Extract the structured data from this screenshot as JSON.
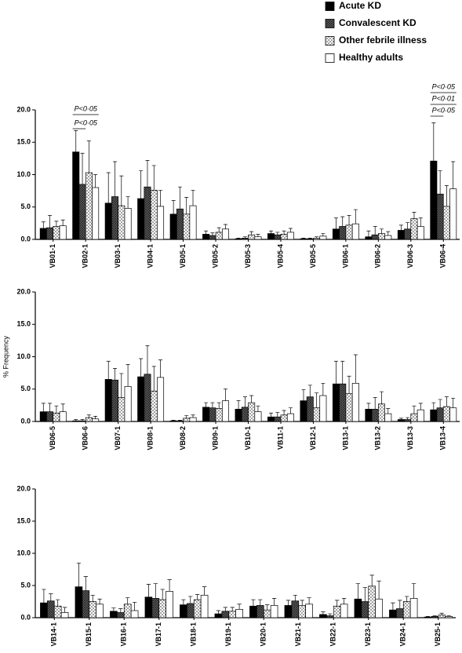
{
  "chart_data": [
    {
      "type": "bar",
      "y_label": null,
      "categories": [
        "VB01-1",
        "VB02-1",
        "VB03-1",
        "VB04-1",
        "VB05-1",
        "VB05-2",
        "VB05-3",
        "VB05-4",
        "VB05-5",
        "VB06-1",
        "VB06-2",
        "VB06-3",
        "VB06-4"
      ],
      "series": [
        {
          "name": "Acute KD",
          "color": "#000000",
          "pattern": "solid",
          "values": [
            1.7,
            13.5,
            5.6,
            6.3,
            3.9,
            0.8,
            0.1,
            0.9,
            0.1,
            1.6,
            0.4,
            1.4,
            12.1
          ],
          "errors": [
            1.0,
            3.3,
            4.7,
            4.3,
            2.1,
            0.5,
            0.1,
            0.4,
            0.1,
            1.7,
            0.9,
            0.8,
            5.9
          ]
        },
        {
          "name": "Convalescent KD",
          "color": "#555555",
          "pattern": "crosshatch",
          "values": [
            1.8,
            8.5,
            6.6,
            8.1,
            4.7,
            0.6,
            0.2,
            0.7,
            0.1,
            2.0,
            0.7,
            1.6,
            7.0
          ],
          "errors": [
            1.9,
            4.8,
            5.4,
            4.1,
            3.4,
            0.4,
            0.2,
            0.4,
            0.1,
            1.5,
            1.3,
            1.0,
            3.6
          ]
        },
        {
          "name": "Other febrile illness",
          "color": "#888888",
          "pattern": "dots",
          "values": [
            2.0,
            10.3,
            5.2,
            7.6,
            3.9,
            1.1,
            0.7,
            0.8,
            0.2,
            2.2,
            0.9,
            3.2,
            5.1
          ],
          "errors": [
            0.8,
            4.9,
            4.6,
            3.8,
            2.6,
            0.7,
            0.5,
            0.5,
            0.2,
            1.5,
            0.7,
            1.0,
            3.2
          ]
        },
        {
          "name": "Healthy adults",
          "color": "#ffffff",
          "pattern": "none",
          "values": [
            2.1,
            8.0,
            4.8,
            5.1,
            5.2,
            1.6,
            0.4,
            1.1,
            0.5,
            2.4,
            0.6,
            2.0,
            7.8
          ],
          "errors": [
            0.9,
            2.0,
            1.8,
            2.5,
            2.4,
            0.7,
            0.4,
            0.6,
            0.4,
            2.2,
            0.6,
            1.3,
            4.2
          ]
        }
      ],
      "annotations": [
        "P<0·05",
        "P<0·05",
        "P<0·05",
        "P<0·01",
        "P<0·05"
      ],
      "ylim": [
        0,
        20
      ],
      "yticks": [
        {
          "value": 0,
          "label": "0.0"
        },
        {
          "value": 5,
          "label": "5.0"
        },
        {
          "value": 10,
          "label": "10.0"
        },
        {
          "value": 15,
          "label": "15.0"
        },
        {
          "value": 20,
          "label": "20.0"
        }
      ]
    },
    {
      "type": "bar",
      "y_label": "% Frequency",
      "categories": [
        "VB06-5",
        "VB06-6",
        "VB07-1",
        "VB08-1",
        "VB08-2",
        "VB09-1",
        "VB10-1",
        "VB11-1",
        "VB12-1",
        "VB13-1",
        "VB13-2",
        "VB13-3",
        "VB13-4"
      ],
      "series": [
        {
          "values": [
            1.5,
            0.1,
            6.5,
            6.9,
            0.1,
            2.2,
            1.9,
            0.7,
            3.2,
            5.8,
            1.9,
            0.3,
            1.8
          ],
          "errors": [
            1.3,
            0.2,
            2.8,
            2.8,
            0.1,
            0.7,
            1.3,
            0.6,
            1.7,
            3.5,
            0.9,
            0.2,
            1.1
          ]
        },
        {
          "values": [
            1.5,
            0.1,
            6.4,
            7.3,
            0.1,
            2.1,
            2.2,
            0.7,
            3.8,
            5.8,
            1.9,
            0.3,
            2.1
          ],
          "errors": [
            1.3,
            0.2,
            1.8,
            4.4,
            0.1,
            0.8,
            1.6,
            0.7,
            1.8,
            3.5,
            1.8,
            0.3,
            1.3
          ]
        },
        {
          "values": [
            1.3,
            0.6,
            3.7,
            4.7,
            0.5,
            2.0,
            2.9,
            1.0,
            2.1,
            4.3,
            2.7,
            1.2,
            2.3
          ],
          "errors": [
            1.1,
            0.4,
            3.7,
            3.8,
            0.4,
            0.9,
            1.1,
            0.7,
            2.3,
            2.7,
            1.9,
            1.2,
            1.5
          ]
        },
        {
          "values": [
            1.5,
            0.4,
            5.4,
            6.8,
            0.6,
            3.2,
            1.5,
            1.2,
            4.0,
            5.9,
            1.2,
            1.8,
            2.1
          ],
          "errors": [
            1.2,
            0.4,
            3.4,
            2.7,
            0.4,
            1.8,
            0.9,
            0.9,
            1.9,
            4.4,
            0.8,
            1.0,
            1.5
          ]
        }
      ],
      "ylim": [
        0,
        20
      ],
      "yticks": [
        {
          "value": 0,
          "label": "0.0"
        },
        {
          "value": 5,
          "label": "5.0"
        },
        {
          "value": 10,
          "label": "10.0"
        },
        {
          "value": 15,
          "label": "15.0"
        },
        {
          "value": 20,
          "label": "20.0"
        }
      ]
    },
    {
      "type": "bar",
      "y_label": null,
      "categories": [
        "VB14-1",
        "VB15-1",
        "VB16-1",
        "VB17-1",
        "VB18-1",
        "VB19-1",
        "VB20-1",
        "VB21-1",
        "VB22-1",
        "VB23-1",
        "VB24-1",
        "VB25-1"
      ],
      "series": [
        {
          "values": [
            2.3,
            4.8,
            1.0,
            3.2,
            2.0,
            0.6,
            1.8,
            1.9,
            0.5,
            2.9,
            1.2,
            0.1
          ],
          "errors": [
            2.1,
            3.7,
            0.5,
            2.0,
            0.8,
            0.5,
            1.0,
            0.8,
            0.4,
            2.4,
            1.1,
            0.1
          ]
        },
        {
          "values": [
            2.6,
            4.2,
            0.8,
            3.0,
            2.2,
            1.0,
            1.9,
            2.6,
            0.3,
            2.5,
            1.4,
            0.2
          ],
          "errors": [
            1.1,
            2.2,
            0.6,
            2.3,
            1.1,
            0.6,
            0.9,
            0.9,
            0.3,
            2.2,
            1.3,
            0.1
          ]
        },
        {
          "values": [
            1.8,
            2.5,
            2.1,
            2.8,
            2.8,
            1.0,
            1.2,
            1.9,
            1.8,
            4.9,
            2.5,
            0.4
          ],
          "errors": [
            1.0,
            1.0,
            1.0,
            1.6,
            0.8,
            0.6,
            0.8,
            0.8,
            0.9,
            1.7,
            0.8,
            0.3
          ]
        },
        {
          "values": [
            0.8,
            2.1,
            1.1,
            4.1,
            3.5,
            1.3,
            1.9,
            2.1,
            2.1,
            2.9,
            3.0,
            0.2
          ],
          "errors": [
            0.8,
            0.8,
            1.3,
            1.8,
            1.3,
            0.8,
            1.1,
            1.0,
            0.9,
            2.8,
            2.3,
            0.1
          ]
        }
      ],
      "ylim": [
        0,
        20
      ],
      "yticks": [
        {
          "value": 0,
          "label": "0.0"
        },
        {
          "value": 5,
          "label": "5.0"
        },
        {
          "value": 10,
          "label": "10.0"
        },
        {
          "value": 15,
          "label": "15.0"
        },
        {
          "value": 20,
          "label": "20.0"
        }
      ]
    }
  ]
}
